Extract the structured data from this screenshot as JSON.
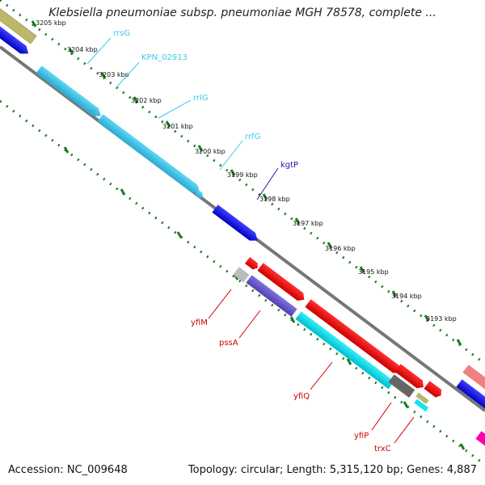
{
  "title": "Klebsiella pneumoniae subsp. pneumoniae MGH 78578, complete ...",
  "footer": {
    "accession": "Accession: NC_009648",
    "summary": "Topology: circular; Length: 5,315,120 bp; Genes: 4,887"
  },
  "ticks": [
    "3205 kbp",
    "3204 kbp",
    "3203 kbp",
    "3202 kbp",
    "3201 kbp",
    "3200 kbp",
    "3199 kbp",
    "3198 kbp",
    "3197 kbp",
    "3196 kbp",
    "3195 kbp",
    "3194 kbp",
    "3193 kbp"
  ],
  "genes_top": [
    {
      "name": "rrsG",
      "color": "#3ec8e8"
    },
    {
      "name": "KPN_02913",
      "color": "#3ec8e8"
    },
    {
      "name": "rrlG",
      "color": "#3ec8e8"
    },
    {
      "name": "rrfG",
      "color": "#3ec8e8"
    },
    {
      "name": "kgtP",
      "color": "#1a1aa8"
    }
  ],
  "genes_bottom": [
    {
      "name": "yfiM",
      "color": "#cc0000"
    },
    {
      "name": "pssA",
      "color": "#cc0000"
    },
    {
      "name": "yfiQ",
      "color": "#cc0000"
    },
    {
      "name": "yfiP",
      "color": "#cc0000"
    },
    {
      "name": "trxC",
      "color": "#cc0000"
    }
  ],
  "colors": {
    "backbone": "#777777",
    "tick_dots": "#1f7a1f",
    "rrna": "#3ec8e8",
    "cds_blue": "#0000ee",
    "cds_red": "#ff0000",
    "cds_cyan": "#11e5f0",
    "cds_purple": "#6a5acd",
    "cds_gray": "#bbbbbb",
    "cds_darkgray": "#666666",
    "cds_olive": "#bdb76b",
    "cds_pink": "#ff8080",
    "cds_magenta": "#ff00aa"
  }
}
